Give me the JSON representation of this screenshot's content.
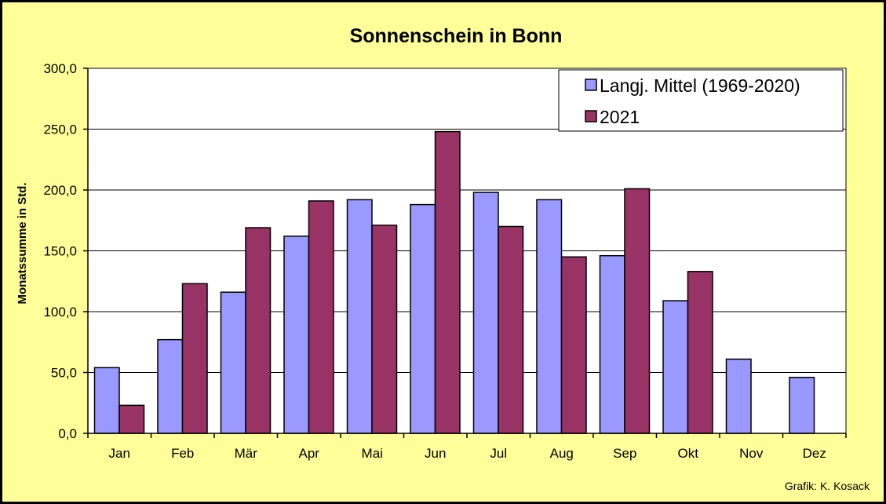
{
  "chart_data": {
    "type": "bar",
    "title": "Sonnenschein in Bonn",
    "xlabel": "",
    "ylabel": "Monatssumme in Std.",
    "ylim": [
      0,
      300
    ],
    "yticks": [
      "0,0",
      "50,0",
      "100,0",
      "150,0",
      "200,0",
      "250,0",
      "300,0"
    ],
    "ytick_values": [
      0,
      50,
      100,
      150,
      200,
      250,
      300
    ],
    "grid": true,
    "legend_position": "top-right",
    "categories": [
      "Jan",
      "Feb",
      "Mär",
      "Apr",
      "Mai",
      "Jun",
      "Jul",
      "Aug",
      "Sep",
      "Okt",
      "Nov",
      "Dez"
    ],
    "series": [
      {
        "name": "Langj. Mittel (1969-2020)",
        "color": "#9999ff",
        "values": [
          54,
          77,
          116,
          162,
          192,
          188,
          198,
          192,
          146,
          109,
          61,
          46
        ]
      },
      {
        "name": "2021",
        "color": "#993366",
        "values": [
          23,
          123,
          169,
          191,
          171,
          248,
          170,
          145,
          201,
          133,
          null,
          null
        ]
      }
    ],
    "credit": "Grafik:  K. Kosack"
  },
  "colors": {
    "background": "#ffff99",
    "plot_area": "#ffffff",
    "gridline": "#000000"
  }
}
